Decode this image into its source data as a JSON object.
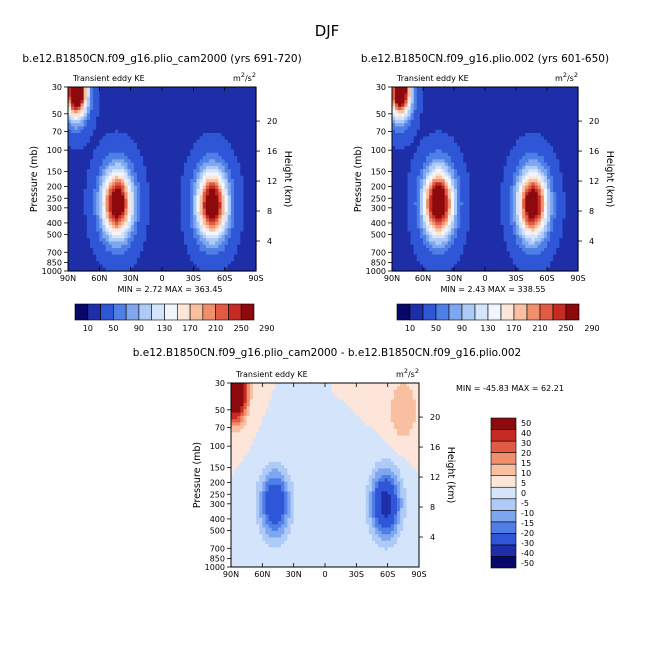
{
  "figure_title": "DJF",
  "colors": {
    "pos_scale": [
      "#08086b",
      "#1e2ea8",
      "#2f56d6",
      "#4f7fe6",
      "#7ea7f0",
      "#aecaf6",
      "#d4e4fb",
      "#f0f6fe",
      "#fde6d9",
      "#f8c0a1",
      "#ef8f6c",
      "#e15a44",
      "#c52a23",
      "#8c0a0d"
    ],
    "diff_scale": [
      "#08086b",
      "#1e2ea8",
      "#2f56d6",
      "#4f7fe6",
      "#7ea7f0",
      "#aecaf6",
      "#d4e4fb",
      "#fde6d9",
      "#f8c0a1",
      "#ef8f6c",
      "#e15a44",
      "#c52a23",
      "#8c0a0d"
    ]
  },
  "chart_data": [
    {
      "type": "heatmap",
      "id": "cam2000",
      "title": "b.e12.B1850CN.f09_g16.plio_cam2000 (yrs 691-720)",
      "variable": "Transient eddy KE",
      "units": "m²/s²",
      "units_base": "m",
      "units_exp1": "2",
      "units_mid": "/s",
      "units_exp2": "2",
      "xlabel": "",
      "ylabel": "Pressure (mb)",
      "ylabel_right": "Height (km)",
      "x_range": [
        90,
        -90
      ],
      "y_range_mb": [
        1000,
        30
      ],
      "xticks": [
        90,
        60,
        30,
        0,
        -30,
        -60,
        -90
      ],
      "xtick_labels": [
        "90N",
        "60N",
        "30N",
        "0",
        "30S",
        "60S",
        "90S"
      ],
      "yticks": [
        30,
        50,
        70,
        100,
        150,
        200,
        250,
        300,
        400,
        500,
        700,
        850,
        1000
      ],
      "ytick_labels": [
        "30",
        "50",
        "70",
        "100",
        "150",
        "200",
        "250",
        "300",
        "400",
        "500",
        "700",
        "850",
        "1000"
      ],
      "height_ticks": [
        4,
        8,
        12,
        16,
        20
      ],
      "height_tick_labels": [
        "4",
        "8",
        "12",
        "16",
        "20"
      ],
      "stats_text": "MIN =    2.72   MAX =  363.45",
      "min": 2.72,
      "max": 363.45,
      "levels": [
        10,
        30,
        50,
        70,
        90,
        110,
        130,
        150,
        170,
        190,
        210,
        230,
        250,
        270,
        290
      ],
      "colorbar_labels": [
        "10",
        "50",
        "90",
        "130",
        "170",
        "210",
        "250",
        "290"
      ],
      "colorbar_orientation": "horizontal",
      "colorbar_bins": 14,
      "features": [
        {
          "name": "upper-polar-maximum",
          "lat": 82,
          "p_mb": 32,
          "value": 360
        },
        {
          "name": "NH-storm-track",
          "lat": 43,
          "p_mb": 275,
          "value": 300
        },
        {
          "name": "SH-storm-track",
          "lat": -48,
          "p_mb": 280,
          "value": 300
        }
      ]
    },
    {
      "type": "heatmap",
      "id": "plio002",
      "title": "b.e12.B1850CN.f09_g16.plio.002 (yrs 601-650)",
      "variable": "Transient eddy KE",
      "units": "m²/s²",
      "units_base": "m",
      "units_exp1": "2",
      "units_mid": "/s",
      "units_exp2": "2",
      "xlabel": "",
      "ylabel": "Pressure (mb)",
      "ylabel_right": "Height (km)",
      "x_range": [
        90,
        -90
      ],
      "y_range_mb": [
        1000,
        30
      ],
      "xticks": [
        90,
        60,
        30,
        0,
        -30,
        -60,
        -90
      ],
      "xtick_labels": [
        "90N",
        "60N",
        "30N",
        "0",
        "30S",
        "60S",
        "90S"
      ],
      "yticks": [
        30,
        50,
        70,
        100,
        150,
        200,
        250,
        300,
        400,
        500,
        700,
        850,
        1000
      ],
      "ytick_labels": [
        "30",
        "50",
        "70",
        "100",
        "150",
        "200",
        "250",
        "300",
        "400",
        "500",
        "700",
        "850",
        "1000"
      ],
      "height_ticks": [
        4,
        8,
        12,
        16,
        20
      ],
      "height_tick_labels": [
        "4",
        "8",
        "12",
        "16",
        "20"
      ],
      "stats_text": "MIN =    2.43   MAX =  338.55",
      "min": 2.43,
      "max": 338.55,
      "levels": [
        10,
        30,
        50,
        70,
        90,
        110,
        130,
        150,
        170,
        190,
        210,
        230,
        250,
        270,
        290
      ],
      "colorbar_labels": [
        "10",
        "50",
        "90",
        "130",
        "170",
        "210",
        "250",
        "290"
      ],
      "colorbar_orientation": "horizontal",
      "colorbar_bins": 14,
      "features": [
        {
          "name": "upper-polar-maximum",
          "lat": 82,
          "p_mb": 32,
          "value": 335
        },
        {
          "name": "NH-storm-track",
          "lat": 45,
          "p_mb": 275,
          "value": 320
        },
        {
          "name": "SH-storm-track",
          "lat": -46,
          "p_mb": 280,
          "value": 300
        }
      ]
    },
    {
      "type": "heatmap",
      "id": "difference",
      "title": "b.e12.B1850CN.f09_g16.plio_cam2000 - b.e12.B1850CN.f09_g16.plio.002",
      "variable": "Transient eddy KE",
      "units": "m²/s²",
      "units_base": "m",
      "units_exp1": "2",
      "units_mid": "/s",
      "units_exp2": "2",
      "xlabel": "",
      "ylabel": "Pressure (mb)",
      "ylabel_right": "Height (km)",
      "x_range": [
        90,
        -90
      ],
      "y_range_mb": [
        1000,
        30
      ],
      "xticks": [
        90,
        60,
        30,
        0,
        -30,
        -60,
        -90
      ],
      "xtick_labels": [
        "90N",
        "60N",
        "30N",
        "0",
        "30S",
        "60S",
        "90S"
      ],
      "yticks": [
        30,
        50,
        70,
        100,
        150,
        200,
        250,
        300,
        400,
        500,
        700,
        850,
        1000
      ],
      "ytick_labels": [
        "30",
        "50",
        "70",
        "100",
        "150",
        "200",
        "250",
        "300",
        "400",
        "500",
        "700",
        "850",
        "1000"
      ],
      "height_ticks": [
        4,
        8,
        12,
        16,
        20
      ],
      "height_tick_labels": [
        "4",
        "8",
        "12",
        "16",
        "20"
      ],
      "stats_text": "MIN =  -45.83   MAX =   62.21",
      "min": -45.83,
      "max": 62.21,
      "levels": [
        -50,
        -40,
        -30,
        -20,
        -15,
        -10,
        -5,
        0,
        5,
        10,
        15,
        20,
        30,
        40,
        50
      ],
      "colorbar_labels": [
        "-50",
        "-40",
        "-30",
        "-20",
        "-15",
        "-10",
        "-5",
        "0",
        "5",
        "10",
        "15",
        "20",
        "30",
        "40",
        "50"
      ],
      "colorbar_orientation": "vertical",
      "colorbar_bins": 13,
      "features": [
        {
          "name": "polar-stratosphere-positive",
          "lat": 86,
          "p_mb": 35,
          "value": 62
        },
        {
          "name": "NH-midlatitude-negative",
          "lat": 48,
          "p_mb": 300,
          "value": -30
        },
        {
          "name": "SH-midlatitude-negative",
          "lat": -58,
          "p_mb": 300,
          "value": -35
        },
        {
          "name": "SH-upper-positive",
          "lat": -75,
          "p_mb": 50,
          "value": 10
        }
      ]
    }
  ]
}
